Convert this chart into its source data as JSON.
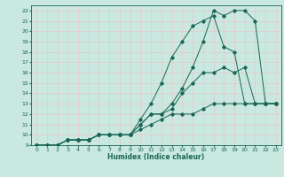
{
  "title": "",
  "xlabel": "Humidex (Indice chaleur)",
  "bg_color": "#c8e8e0",
  "line_color": "#1a6655",
  "grid_color": "#e8c8c8",
  "xlim": [
    -0.5,
    23.5
  ],
  "ylim": [
    9,
    22.5
  ],
  "xticks": [
    0,
    1,
    2,
    3,
    4,
    5,
    6,
    7,
    8,
    9,
    10,
    11,
    12,
    13,
    14,
    15,
    16,
    17,
    18,
    19,
    20,
    21,
    22,
    23
  ],
  "yticks": [
    9,
    10,
    11,
    12,
    13,
    14,
    15,
    16,
    17,
    18,
    19,
    20,
    21,
    22
  ],
  "lines": [
    {
      "x": [
        0,
        1,
        2,
        3,
        4,
        5,
        6,
        7,
        8,
        9,
        10,
        11,
        12,
        13,
        14,
        15,
        16,
        17,
        18,
        19,
        20,
        21,
        22,
        23
      ],
      "y": [
        9,
        9,
        9,
        9.5,
        9.5,
        9.5,
        10,
        10,
        10,
        10,
        10.5,
        11,
        11.5,
        12,
        12,
        12,
        12.5,
        13,
        13,
        13,
        13,
        13,
        13,
        13
      ]
    },
    {
      "x": [
        0,
        1,
        2,
        3,
        4,
        5,
        6,
        7,
        8,
        9,
        10,
        11,
        12,
        13,
        14,
        15,
        16,
        17,
        18,
        19,
        20,
        21,
        22,
        23
      ],
      "y": [
        9,
        9,
        9,
        9.5,
        9.5,
        9.5,
        10,
        10,
        10,
        10,
        11,
        12,
        12,
        12.5,
        14,
        15,
        16,
        16,
        16.5,
        16,
        16.5,
        13,
        13,
        13
      ]
    },
    {
      "x": [
        0,
        1,
        2,
        3,
        4,
        5,
        6,
        7,
        8,
        9,
        10,
        11,
        12,
        13,
        14,
        15,
        16,
        17,
        18,
        19,
        20,
        21,
        22,
        23
      ],
      "y": [
        9,
        9,
        9,
        9.5,
        9.5,
        9.5,
        10,
        10,
        10,
        10,
        11.5,
        13,
        15,
        17.5,
        19,
        20.5,
        21,
        21.5,
        18.5,
        18,
        13,
        13,
        13,
        13
      ]
    },
    {
      "x": [
        0,
        1,
        2,
        3,
        4,
        5,
        6,
        7,
        8,
        9,
        10,
        11,
        12,
        13,
        14,
        15,
        16,
        17,
        18,
        19,
        20,
        21,
        22,
        23
      ],
      "y": [
        9,
        9,
        9,
        9.5,
        9.5,
        9.5,
        10,
        10,
        10,
        10,
        11,
        12,
        12,
        13,
        14.5,
        16.5,
        19,
        22,
        21.5,
        22,
        22,
        21,
        13,
        13
      ]
    }
  ]
}
